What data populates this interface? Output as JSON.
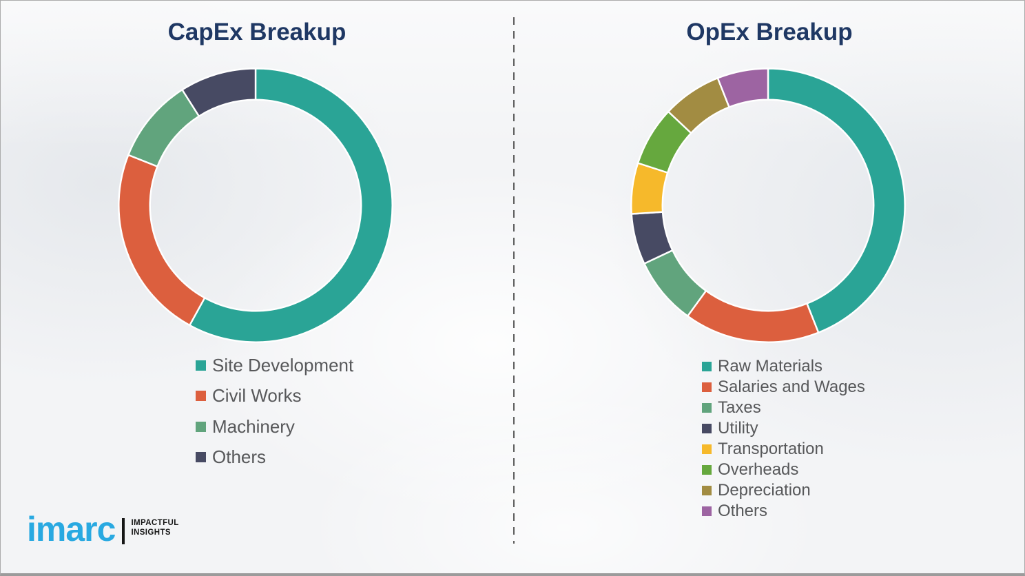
{
  "page": {
    "background_color": "#f3f4f6",
    "divider_color": "#5c5c5c",
    "title_color": "#1f3864",
    "legend_text_color": "#57585a"
  },
  "chart_data": [
    {
      "type": "pie",
      "subtype": "donut",
      "title": "CapEx Breakup",
      "legend_position": "bottom-left",
      "values_unit": "percent",
      "segments": [
        {
          "label": "Site Development",
          "value": 58,
          "color": "#2aa496"
        },
        {
          "label": "Civil Works",
          "value": 23,
          "color": "#dc5f3e"
        },
        {
          "label": "Machinery",
          "value": 10,
          "color": "#61a47d"
        },
        {
          "label": "Others",
          "value": 9,
          "color": "#474a63"
        }
      ]
    },
    {
      "type": "pie",
      "subtype": "donut",
      "title": "OpEx Breakup",
      "legend_position": "bottom-left",
      "values_unit": "percent",
      "segments": [
        {
          "label": "Raw Materials",
          "value": 44,
          "color": "#2aa496"
        },
        {
          "label": "Salaries and Wages",
          "value": 16,
          "color": "#dc5f3e"
        },
        {
          "label": "Taxes",
          "value": 8,
          "color": "#61a47d"
        },
        {
          "label": "Utility",
          "value": 6,
          "color": "#474a63"
        },
        {
          "label": "Transportation",
          "value": 6,
          "color": "#f6b92b"
        },
        {
          "label": "Overheads",
          "value": 7,
          "color": "#66a83e"
        },
        {
          "label": "Depreciation",
          "value": 7,
          "color": "#a28c42"
        },
        {
          "label": "Others",
          "value": 6,
          "color": "#9d64a2"
        }
      ]
    }
  ],
  "logo": {
    "brand": "imarc",
    "brand_color": "#29a9e1",
    "tagline_line1": "IMPACTFUL",
    "tagline_line2": "INSIGHTS"
  }
}
